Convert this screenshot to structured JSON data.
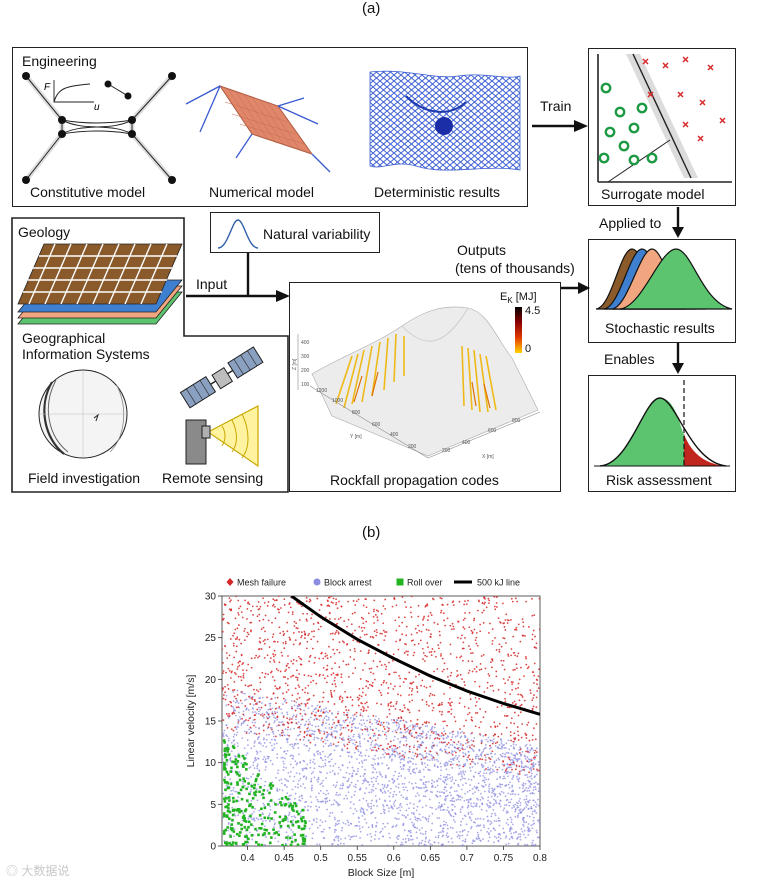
{
  "panel_labels": {
    "a": "(a)",
    "b": "(b)"
  },
  "engineering": {
    "title": "Engineering",
    "constitutive": "Constitutive model",
    "numerical": "Numerical model",
    "deterministic": "Deterministic results",
    "F_label": "F",
    "u_label": "u"
  },
  "train_label": "Train",
  "surrogate": {
    "label": "Surrogate model"
  },
  "applied_to": "Applied to",
  "stochastic": {
    "label": "Stochastic results"
  },
  "enables": "Enables",
  "risk": {
    "label": "Risk assessment"
  },
  "natural_variability": "Natural variability",
  "outputs": {
    "line1": "Outputs",
    "line2": "(tens of thousands)"
  },
  "input_label": "Input",
  "geology": {
    "title": "Geology",
    "gis_line1": "Geographical",
    "gis_line2": "Information Systems",
    "field": "Field investigation",
    "remote": "Remote sensing"
  },
  "rockfall": {
    "label": "Rockfall propagation codes",
    "ek_label": "E",
    "ek_sub": "K",
    "ek_unit": " [MJ]",
    "ek_max": "4.5",
    "ek_min": "0",
    "axis_z": "Z [m]",
    "axis_y": "Y [m]",
    "axis_x": "X [m]"
  },
  "colors": {
    "mesh_failure": "#d62728",
    "block_arrest": "#8c8ce0",
    "roll_over": "#22b322",
    "line": "#000000",
    "accent_green": "#5cc46e",
    "accent_blue": "#3f7fd0",
    "accent_brown": "#8b5a2b",
    "accent_salmon": "#f2a67f"
  },
  "chart_data": {
    "type": "scatter",
    "xlabel": "Block Size [m]",
    "ylabel": "Linear velocity [m/s]",
    "xlim": [
      0.365,
      0.8
    ],
    "ylim": [
      0,
      30
    ],
    "x_ticks": [
      "0.4",
      "0.45",
      "0.5",
      "0.55",
      "0.6",
      "0.65",
      "0.7",
      "0.75",
      "0.8"
    ],
    "y_ticks": [
      "0",
      "5",
      "10",
      "15",
      "20",
      "25",
      "30"
    ],
    "legend_position": "top",
    "series": [
      {
        "name": "Mesh failure",
        "marker": "diamond",
        "color": "#d62728",
        "region": {
          "x": [
            0.365,
            0.8
          ],
          "y_min_left": 14,
          "y_min_right": 8,
          "y_max": 30
        }
      },
      {
        "name": "Block arrest",
        "marker": "circle",
        "color": "#8c8ce0",
        "region": {
          "x": [
            0.365,
            0.8
          ],
          "y_max_left": 19,
          "y_max_right": 12,
          "y_min": 0
        }
      },
      {
        "name": "Roll over",
        "marker": "square",
        "color": "#22b322",
        "region": {
          "x": [
            0.368,
            0.48
          ],
          "y": [
            0,
            13
          ]
        }
      },
      {
        "name": "500 kJ line",
        "type": "line",
        "color": "#000000",
        "points": [
          [
            0.46,
            30
          ],
          [
            0.5,
            27.5
          ],
          [
            0.55,
            24.8
          ],
          [
            0.6,
            22.5
          ],
          [
            0.65,
            20.4
          ],
          [
            0.7,
            18.6
          ],
          [
            0.75,
            17.1
          ],
          [
            0.8,
            15.8
          ]
        ]
      }
    ]
  }
}
